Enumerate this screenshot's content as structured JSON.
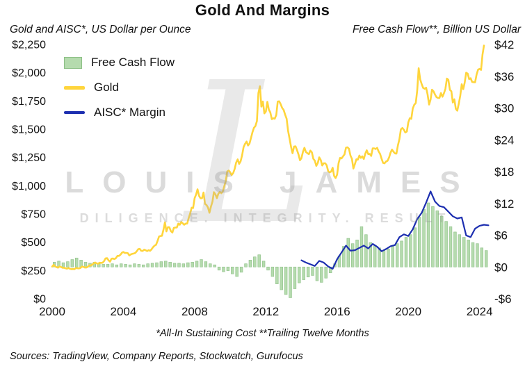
{
  "title": "Gold And Margins",
  "left_axis_title": "Gold and AISC*, US Dollar per Ounce",
  "right_axis_title": "Free Cash Flow**, Billion US Dollar",
  "footnote": "*All-In Sustaining Cost **Trailing Twelve Months",
  "sources": "Sources: TradingView, Company Reports, Stockwatch, Gurufocus",
  "watermark": {
    "monogram": "L",
    "line1": "LOUIS JAMES",
    "line2": "DILIGENCE. INTEGRITY. RESULT"
  },
  "legend": [
    {
      "label": "Free Cash Flow",
      "type": "bar"
    },
    {
      "label": "Gold",
      "type": "line"
    },
    {
      "label": "AISC* Margin",
      "type": "line"
    }
  ],
  "colors": {
    "gold": "#FFD53C",
    "aisc": "#1D2FB0",
    "fcf_fill": "#B5DBAE",
    "fcf_stroke": "#8CBF85",
    "text": "#141414",
    "watermark": "#DCDCDC"
  },
  "chart_data": {
    "type": "combo",
    "title": "Gold And Margins",
    "grid": false,
    "legend_position": "top-left",
    "x_axis": {
      "range": [
        2000,
        2024.6
      ],
      "tick_values": [
        2000,
        2004,
        2008,
        2012,
        2016,
        2020,
        2024
      ],
      "tick_labels": [
        "2000",
        "2004",
        "2008",
        "2012",
        "2016",
        "2020",
        "2024"
      ]
    },
    "left_axis": {
      "label": "Gold and AISC*, US Dollar per Ounce",
      "range": [
        0,
        2250
      ],
      "tick_values": [
        0,
        250,
        500,
        750,
        1000,
        1250,
        1500,
        1750,
        2000,
        2250
      ],
      "tick_labels": [
        "$0",
        "$250",
        "$500",
        "$750",
        "$1,000",
        "$1,250",
        "$1,500",
        "$1,750",
        "$2,000",
        "$2,250"
      ]
    },
    "right_axis": {
      "label": "Free Cash Flow**, Billion US Dollar",
      "range": [
        -6,
        42
      ],
      "tick_values": [
        -6,
        0,
        6,
        12,
        18,
        24,
        30,
        36,
        42
      ],
      "tick_labels": [
        "-$6",
        "$0",
        "$6",
        "$12",
        "$18",
        "$24",
        "$30",
        "$36",
        "$42"
      ]
    },
    "series": [
      {
        "name": "Free Cash Flow",
        "type": "bar",
        "axis": "right",
        "x_start": 2000.125,
        "x_step": 0.25,
        "values": [
          0.9,
          1.1,
          0.8,
          1.0,
          1.4,
          1.7,
          1.3,
          0.9,
          0.7,
          0.9,
          0.6,
          0.5,
          0.5,
          0.6,
          0.4,
          0.6,
          0.5,
          0.4,
          0.6,
          0.5,
          0.4,
          0.6,
          0.7,
          0.8,
          1.0,
          1.1,
          0.9,
          0.7,
          0.7,
          0.6,
          0.8,
          0.9,
          1.1,
          1.4,
          1.0,
          0.6,
          0.4,
          -0.6,
          -0.9,
          -0.7,
          -1.3,
          -1.8,
          -1.0,
          0.6,
          1.3,
          1.9,
          2.3,
          1.1,
          -0.6,
          -1.8,
          -3.2,
          -4.3,
          -5.2,
          -5.8,
          -4.1,
          -3.0,
          -2.4,
          -1.9,
          -1.6,
          -2.6,
          -2.9,
          -2.1,
          -1.1,
          0.6,
          2.1,
          3.9,
          5.4,
          4.4,
          5.1,
          7.6,
          6.1,
          4.6,
          4.1,
          3.6,
          3.1,
          3.4,
          3.9,
          4.4,
          4.9,
          5.6,
          6.1,
          7.4,
          9.4,
          10.9,
          12.1,
          11.4,
          10.6,
          9.6,
          8.6,
          7.6,
          6.6,
          6.1,
          5.6,
          5.1,
          4.6,
          4.4,
          3.6,
          3.1
        ]
      },
      {
        "name": "Gold",
        "type": "line",
        "axis": "left",
        "x_start": 2000.0,
        "x_step": 0.0833333,
        "values": [
          284,
          300,
          286,
          280,
          275,
          286,
          281,
          274,
          274,
          270,
          266,
          272,
          265,
          262,
          263,
          261,
          272,
          270,
          268,
          272,
          284,
          283,
          276,
          276,
          282,
          295,
          294,
          302,
          314,
          321,
          313,
          310,
          319,
          317,
          319,
          333,
          357,
          359,
          340,
          328,
          355,
          356,
          351,
          360,
          379,
          379,
          389,
          407,
          414,
          405,
          406,
          403,
          383,
          392,
          398,
          400,
          405,
          420,
          439,
          442,
          424,
          423,
          434,
          429,
          422,
          430,
          424,
          438,
          456,
          470,
          477,
          510,
          550,
          555,
          557,
          611,
          676,
          596,
          634,
          632,
          598,
          586,
          627,
          630,
          631,
          665,
          655,
          679,
          667,
          655,
          665,
          665,
          713,
          755,
          806,
          803,
          890,
          922,
          968,
          910,
          889,
          889,
          940,
          839,
          829,
          807,
          761,
          816,
          858,
          943,
          924,
          890,
          929,
          946,
          934,
          949,
          997,
          1043,
          1127,
          1135,
          1118,
          1095,
          1113,
          1149,
          1205,
          1233,
          1193,
          1216,
          1271,
          1342,
          1370,
          1391,
          1356,
          1373,
          1424,
          1474,
          1512,
          1529,
          1573,
          1820,
          1880,
          1700,
          1745,
          1640,
          1656,
          1743,
          1674,
          1650,
          1589,
          1597,
          1593,
          1626,
          1745,
          1747,
          1721,
          1688,
          1671,
          1628,
          1593,
          1485,
          1414,
          1343,
          1287,
          1347,
          1349,
          1316,
          1276,
          1225,
          1244,
          1301,
          1336,
          1299,
          1288,
          1279,
          1311,
          1296,
          1238,
          1222,
          1176,
          1201,
          1251,
          1227,
          1179,
          1199,
          1199,
          1181,
          1128,
          1118,
          1125,
          1159,
          1086,
          1068,
          1098,
          1200,
          1246,
          1242,
          1260,
          1277,
          1337,
          1340,
          1327,
          1267,
          1238,
          1152,
          1192,
          1234,
          1231,
          1267,
          1246,
          1260,
          1237,
          1283,
          1314,
          1280,
          1282,
          1264,
          1331,
          1331,
          1325,
          1335,
          1303,
          1282,
          1238,
          1202,
          1198,
          1215,
          1221,
          1250,
          1292,
          1320,
          1301,
          1286,
          1284,
          1359,
          1413,
          1499,
          1511,
          1495,
          1471,
          1480,
          1561,
          1597,
          1592,
          1683,
          1716,
          1732,
          1843,
          2040,
          1940,
          1900,
          1866,
          1858,
          1867,
          1808,
          1718,
          1762,
          1850,
          1835,
          1807,
          1784,
          1777,
          1777,
          1820,
          1787,
          1817,
          1856,
          1948,
          1937,
          1848,
          1836,
          1736,
          1765,
          1681,
          1664,
          1726,
          1797,
          1898,
          1855,
          1913,
          2000,
          1992,
          1943,
          1951,
          1918,
          1916,
          1915,
          1984,
          2026,
          2034,
          2025,
          2160,
          2240
        ]
      },
      {
        "name": "AISC* Margin",
        "type": "line",
        "axis": "left",
        "x_start": 2014.0,
        "x_step": 0.25,
        "values": [
          340,
          320,
          305,
          290,
          335,
          320,
          285,
          265,
          350,
          410,
          470,
          425,
          430,
          450,
          470,
          445,
          485,
          460,
          420,
          440,
          465,
          475,
          545,
          570,
          555,
          615,
          705,
          760,
          850,
          950,
          860,
          820,
          810,
          770,
          730,
          710,
          720,
          560,
          545,
          620,
          645,
          655,
          650
        ]
      }
    ]
  }
}
